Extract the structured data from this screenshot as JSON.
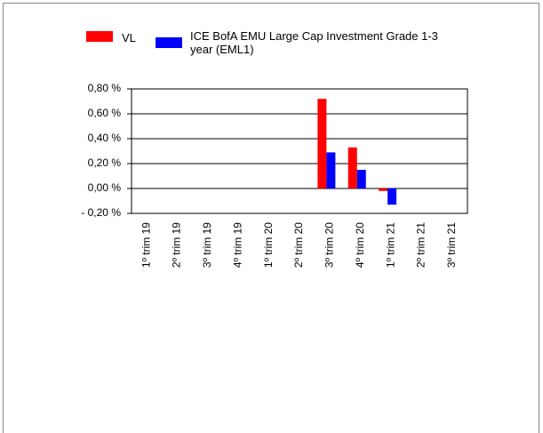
{
  "chart_data": {
    "type": "bar",
    "categories": [
      "1º trim 19",
      "2º trim 19",
      "3º trim 19",
      "4º trim 19",
      "1º trim 20",
      "2º trim 20",
      "3º trim 20",
      "4º trim 20",
      "1º trim 21",
      "2º trim 21",
      "3º trim 21"
    ],
    "series": [
      {
        "name": "VL",
        "color": "#ff0000",
        "values": [
          null,
          null,
          null,
          null,
          null,
          null,
          0.72,
          0.33,
          -0.02,
          null,
          null
        ]
      },
      {
        "name": "ICE BofA EMU Large Cap Investment Grade 1-3 year (EML1)",
        "color": "#0000ff",
        "values": [
          null,
          null,
          null,
          null,
          null,
          null,
          0.29,
          0.15,
          -0.13,
          null,
          null
        ]
      }
    ],
    "ylim": [
      -0.2,
      0.8
    ],
    "yticks": [
      {
        "value": -0.2,
        "label": "- 0,20 %"
      },
      {
        "value": 0,
        "label": "0,00 %"
      },
      {
        "value": 0.2,
        "label": "0,20 %"
      },
      {
        "value": 0.4,
        "label": "0,40 %"
      },
      {
        "value": 0.6,
        "label": "0,60 %"
      },
      {
        "value": 0.8,
        "label": "0,80 %"
      }
    ],
    "grid": true
  }
}
